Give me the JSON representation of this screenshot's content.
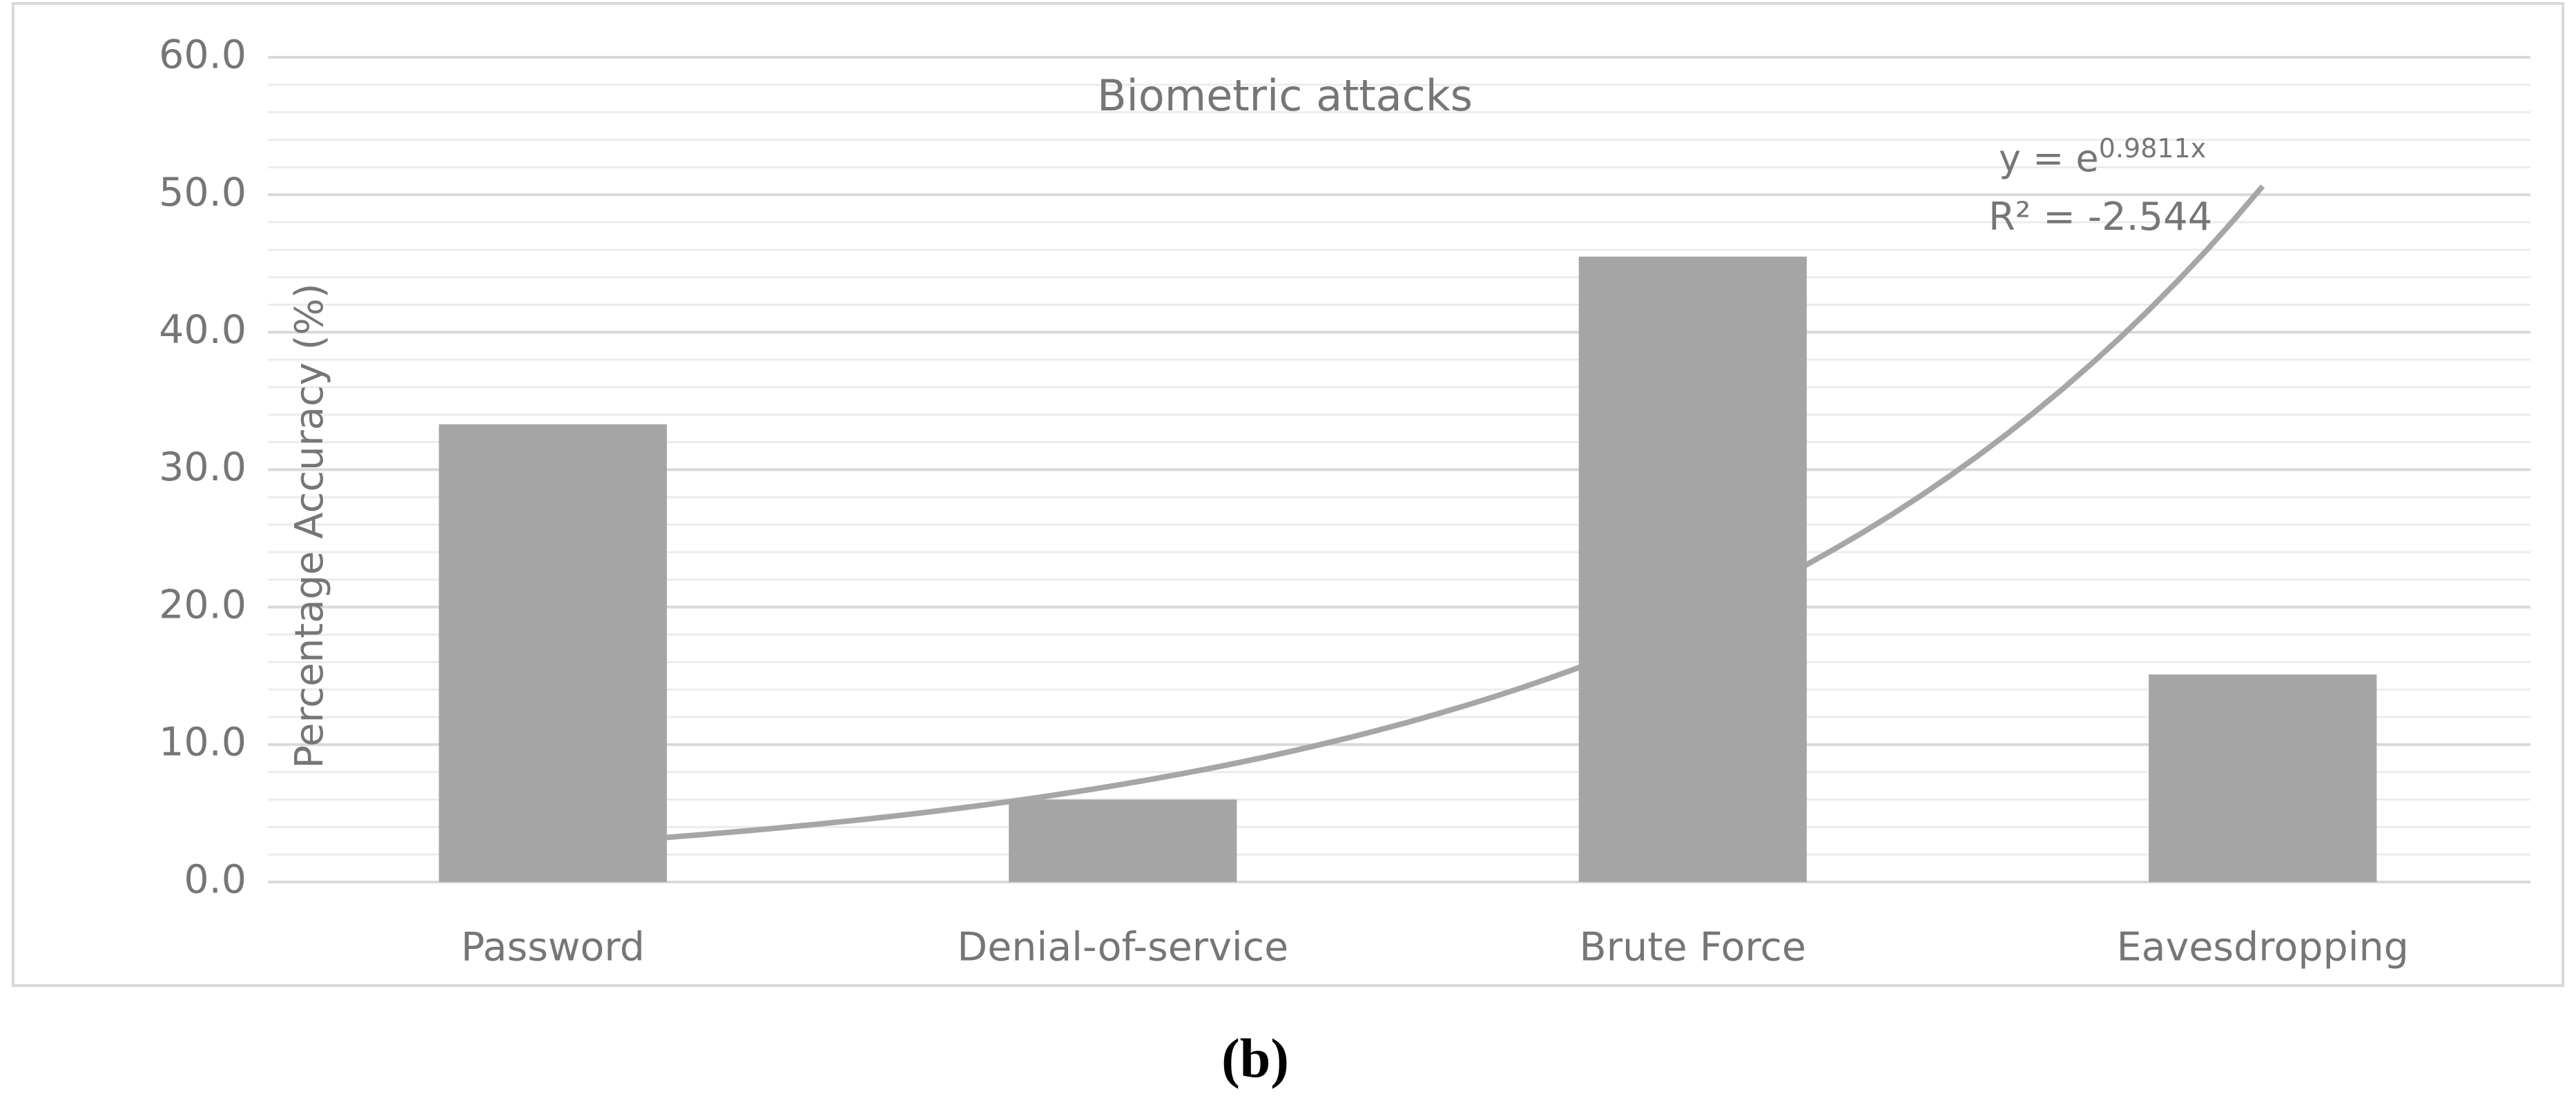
{
  "chart_data": {
    "type": "bar",
    "title": "Biometric attacks",
    "y_label": "Percentage Accuracy (%)",
    "categories": [
      "Password",
      "Denial-of-service",
      "Brute Force",
      "Eavesdropping"
    ],
    "values": [
      33.3,
      6.0,
      45.5,
      15.1
    ],
    "color": "#a5a5a5",
    "ylim": [
      0,
      60
    ],
    "yticks": [
      {
        "value": 0,
        "label": "0.0"
      },
      {
        "value": 10,
        "label": "10.0"
      },
      {
        "value": 20,
        "label": "20.0"
      },
      {
        "value": 30,
        "label": "30.0"
      },
      {
        "value": 40,
        "label": "40.0"
      },
      {
        "value": 50,
        "label": "50.0"
      },
      {
        "value": 60,
        "label": "60.0"
      }
    ],
    "grid": true,
    "trendline": {
      "type": "exponential",
      "color": "#a6a6a6",
      "equation": {
        "base": "y = e",
        "exponent": "0.9811x"
      },
      "r_squared_label": "R² = -2.544"
    },
    "caption": "(b)"
  }
}
